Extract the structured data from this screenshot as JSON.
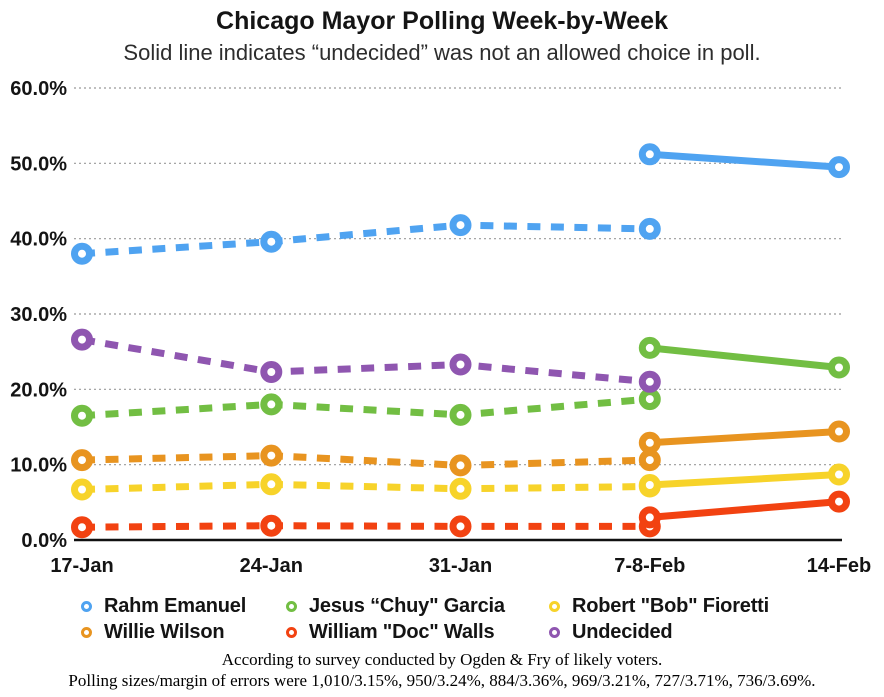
{
  "header": {
    "title": "Chicago Mayor Polling Week-by-Week",
    "subtitle": "Solid line indicates “undecided” was not an allowed choice in poll."
  },
  "footer": {
    "line1": "According to survey conducted by Ogden & Fry of likely voters.",
    "line2": "Polling sizes/margin of errors were 1,010/3.15%, 950/3.24%, 884/3.36%, 969/3.21%, 727/3.71%, 736/3.69%."
  },
  "chart_data": {
    "type": "line",
    "title": "Chicago Mayor Polling Week-by-Week",
    "subtitle": "Solid line indicates “undecided” was not an allowed choice in poll.",
    "categories": [
      "17-Jan",
      "24-Jan",
      "31-Jan",
      "7-8-Feb",
      "14-Feb"
    ],
    "ylim": [
      0,
      60
    ],
    "y_tick_labels": [
      "0.0%",
      "10.0%",
      "20.0%",
      "30.0%",
      "40.0%",
      "50.0%",
      "60.0%"
    ],
    "grid": "horizontal-dotted",
    "legend_position": "bottom",
    "line_style_meaning": {
      "dashed": "poll allowed an undecided choice",
      "solid": "undecided was not an allowed choice in poll"
    },
    "series": [
      {
        "name": "Rahm Emanuel",
        "color": "#4FA3F1",
        "dashed_values": [
          38.0,
          39.6,
          41.8,
          41.3,
          null
        ],
        "solid_values": [
          null,
          null,
          null,
          51.2,
          49.5
        ]
      },
      {
        "name": "Jesus “Chuy\" Garcia",
        "color": "#72BE43",
        "dashed_values": [
          16.5,
          18.0,
          16.6,
          18.7,
          null
        ],
        "solid_values": [
          null,
          null,
          null,
          25.5,
          22.9
        ]
      },
      {
        "name": "Robert \"Bob\" Fioretti",
        "color": "#F7D32A",
        "dashed_values": [
          6.7,
          7.4,
          6.8,
          7.1,
          null
        ],
        "solid_values": [
          null,
          null,
          null,
          7.3,
          8.7
        ]
      },
      {
        "name": "Willie Wilson",
        "color": "#E89420",
        "dashed_values": [
          10.6,
          11.2,
          9.9,
          10.6,
          null
        ],
        "solid_values": [
          null,
          null,
          null,
          12.9,
          14.4
        ]
      },
      {
        "name": "William \"Doc\" Walls",
        "color": "#F24211",
        "dashed_values": [
          1.7,
          1.9,
          1.8,
          1.8,
          null
        ],
        "solid_values": [
          null,
          null,
          null,
          3.0,
          5.1
        ]
      },
      {
        "name": "Undecided",
        "color": "#8F56B0",
        "dashed_values": [
          26.6,
          22.3,
          23.3,
          21.0,
          null
        ],
        "solid_values": [
          null,
          null,
          null,
          null,
          null
        ]
      }
    ]
  }
}
